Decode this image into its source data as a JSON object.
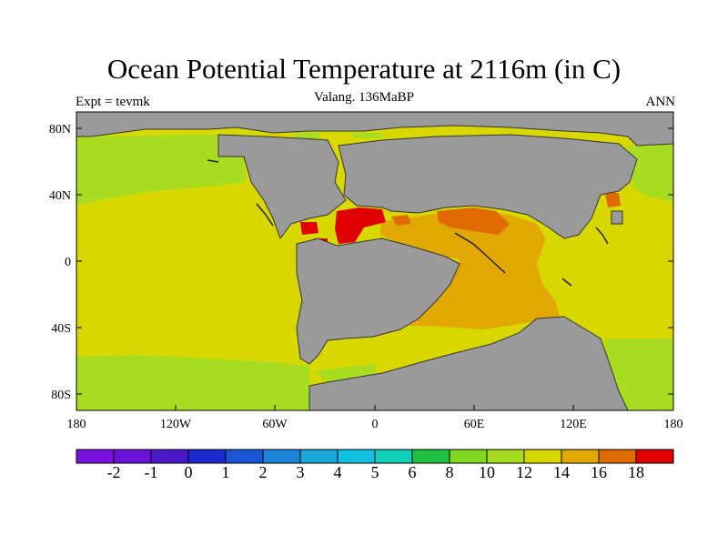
{
  "title": "Ocean Potential Temperature at 2116m (in C)",
  "subtitle": "Valang. 136MaBP",
  "left_label": "Expt = tevmk",
  "right_label": "ANN",
  "colors": {
    "land": "#9a9a9a",
    "c_m3": "#7a10e0",
    "c_m2": "#6a12d8",
    "c_m1": "#4a18c8",
    "c_0": "#1a2ad0",
    "c_1": "#1a55d8",
    "c_2": "#1a85d8",
    "c_3": "#1aa8d8",
    "c_4": "#10c0e0",
    "c_5": "#10d0b8",
    "c_6": "#20c040",
    "c_8": "#80d820",
    "c_10": "#a8dc20",
    "c_12": "#d8d800",
    "c_14": "#e0a800",
    "c_16": "#e06a00",
    "c_18": "#e03000",
    "c_20": "#e00000"
  },
  "map": {
    "lat_ticks": [
      "80N",
      "40N",
      "0",
      "40S",
      "80S"
    ],
    "lon_ticks": [
      "180",
      "120W",
      "60W",
      "0",
      "60E",
      "120E",
      "180"
    ]
  },
  "colorbar": {
    "labels": [
      "-2",
      "-1",
      "0",
      "1",
      "2",
      "3",
      "4",
      "5",
      "6",
      "8",
      "10",
      "12",
      "14",
      "16",
      "18"
    ]
  }
}
